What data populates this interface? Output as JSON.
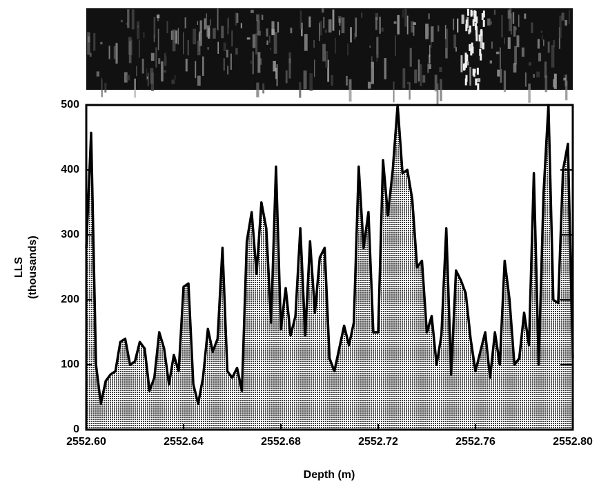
{
  "chart_data": {
    "type": "area",
    "xlabel": "Depth (m)",
    "ylabel": [
      "LLS",
      "(thousands)"
    ],
    "xlim": [
      2552.6,
      2552.8
    ],
    "xticks": [
      {
        "value": 2552.6,
        "label": "2552.60"
      },
      2552.64,
      2552.68,
      2552.72,
      2552.76,
      {
        "value": 2552.8,
        "label": "2552.80"
      }
    ],
    "ylim": [
      0,
      500
    ],
    "yticks": [
      0,
      100,
      200,
      300,
      400,
      500
    ],
    "color": "#000000",
    "x": [
      2552.6,
      2552.602,
      2552.604,
      2552.606,
      2552.608,
      2552.61,
      2552.612,
      2552.614,
      2552.616,
      2552.618,
      2552.62,
      2552.622,
      2552.624,
      2552.626,
      2552.628,
      2552.63,
      2552.632,
      2552.634,
      2552.636,
      2552.638,
      2552.64,
      2552.642,
      2552.644,
      2552.646,
      2552.648,
      2552.65,
      2552.652,
      2552.654,
      2552.656,
      2552.658,
      2552.66,
      2552.662,
      2552.664,
      2552.666,
      2552.668,
      2552.67,
      2552.672,
      2552.674,
      2552.676,
      2552.678,
      2552.68,
      2552.682,
      2552.684,
      2552.686,
      2552.688,
      2552.69,
      2552.692,
      2552.694,
      2552.696,
      2552.698,
      2552.7,
      2552.702,
      2552.704,
      2552.706,
      2552.708,
      2552.71,
      2552.712,
      2552.714,
      2552.716,
      2552.718,
      2552.72,
      2552.722,
      2552.724,
      2552.726,
      2552.728,
      2552.73,
      2552.732,
      2552.734,
      2552.736,
      2552.738,
      2552.74,
      2552.742,
      2552.744,
      2552.746,
      2552.748,
      2552.75,
      2552.752,
      2552.754,
      2552.756,
      2552.758,
      2552.76,
      2552.762,
      2552.764,
      2552.766,
      2552.768,
      2552.77,
      2552.772,
      2552.774,
      2552.776,
      2552.778,
      2552.78,
      2552.782,
      2552.784,
      2552.786,
      2552.788,
      2552.79,
      2552.792,
      2552.794,
      2552.796,
      2552.798,
      2552.8
    ],
    "values": [
      280,
      457,
      100,
      40,
      75,
      85,
      90,
      135,
      140,
      100,
      105,
      135,
      125,
      60,
      80,
      150,
      125,
      70,
      115,
      90,
      220,
      225,
      70,
      40,
      80,
      155,
      120,
      140,
      280,
      90,
      80,
      95,
      60,
      290,
      335,
      240,
      350,
      310,
      165,
      405,
      155,
      218,
      145,
      175,
      310,
      145,
      290,
      180,
      265,
      280,
      110,
      90,
      125,
      160,
      130,
      165,
      405,
      280,
      335,
      150,
      150,
      415,
      330,
      400,
      500,
      395,
      400,
      355,
      250,
      260,
      150,
      175,
      100,
      145,
      310,
      85,
      245,
      230,
      210,
      140,
      90,
      120,
      150,
      80,
      150,
      100,
      260,
      200,
      100,
      110,
      180,
      130,
      395,
      100,
      365,
      500,
      200,
      195,
      400,
      440,
      110
    ]
  }
}
